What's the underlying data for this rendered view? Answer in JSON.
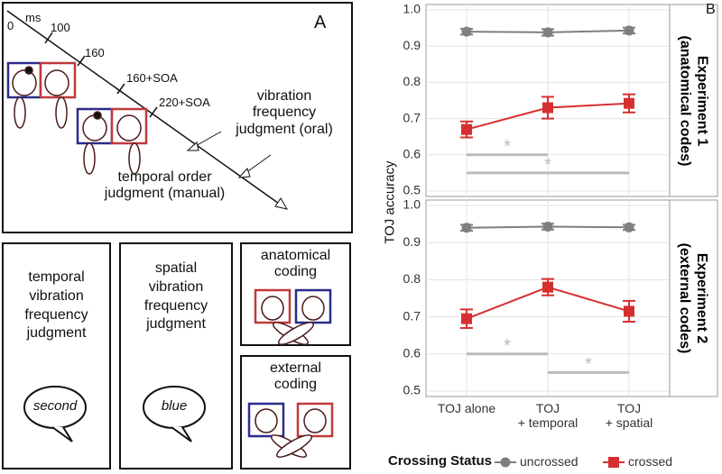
{
  "panel_a": {
    "label": "A",
    "timeline": {
      "start": "0",
      "unit": "ms",
      "t1": "100",
      "t2": "160",
      "t3": "160+SOA",
      "t4": "220+SOA"
    },
    "oral_label": "vibration\nfrequency\njudgment (oral)",
    "manual_label": "temporal order\njudgment (manual)"
  },
  "boxes": [
    {
      "text": "temporal\nvibration\nfrequency\njudgment",
      "bubble": "second"
    },
    {
      "text": "spatial\nvibration\nfrequency\njudgment",
      "bubble": "blue"
    },
    {
      "text": "anatomical\ncoding"
    },
    {
      "text": "external\ncoding"
    }
  ],
  "panel_b": {
    "label": "B",
    "y_label": "TOJ accuracy",
    "legend_title": "Crossing Status"
  },
  "chart_data": [
    {
      "type": "line",
      "title": "Experiment 1\n(anatomical codes)",
      "categories": [
        "TOJ alone",
        "TOJ\n+ temporal",
        "TOJ\n+ spatial"
      ],
      "series": [
        {
          "name": "uncrossed",
          "color": "#7f7f7f",
          "marker": "circle",
          "values": [
            0.94,
            0.938,
            0.943
          ],
          "errors": [
            0.008,
            0.009,
            0.008
          ]
        },
        {
          "name": "crossed",
          "color": "#d62f2f",
          "marker": "square",
          "values": [
            0.67,
            0.73,
            0.742
          ],
          "errors": [
            0.022,
            0.03,
            0.025
          ]
        }
      ],
      "significance": [
        {
          "from": 0,
          "to": 1,
          "y": 0.6,
          "label": "*"
        },
        {
          "from": 0,
          "to": 2,
          "y": 0.55,
          "label": "*"
        }
      ],
      "ylim": [
        0.5,
        1.0
      ],
      "yticks": [
        0.5,
        0.6,
        0.7,
        0.8,
        0.9,
        {
          "value": 1,
          "label": "1.0"
        }
      ],
      "grid": true
    },
    {
      "type": "line",
      "title": "Experiment 2\n(external codes)",
      "categories": [
        "TOJ alone",
        "TOJ\n+ temporal",
        "TOJ\n+ spatial"
      ],
      "series": [
        {
          "color": "#7f7f7f",
          "marker": "circle",
          "values": [
            0.94,
            0.943,
            0.941
          ],
          "errors": [
            0.008,
            0.008,
            0.007
          ]
        },
        {
          "color": "#d62f2f",
          "marker": "square",
          "values": [
            0.695,
            0.78,
            0.715
          ],
          "errors": [
            0.025,
            0.022,
            0.028
          ]
        }
      ],
      "significance": [
        {
          "from": 0,
          "to": 1,
          "y": 0.6,
          "label": "*"
        },
        {
          "from": 1,
          "to": 2,
          "y": 0.55,
          "label": "*"
        }
      ],
      "ylim": [
        0.5,
        1.0
      ],
      "yticks": [
        0.5,
        0.6,
        0.7,
        0.8,
        0.9,
        {
          "value": 1,
          "label": "1.0"
        }
      ],
      "grid": true
    }
  ]
}
